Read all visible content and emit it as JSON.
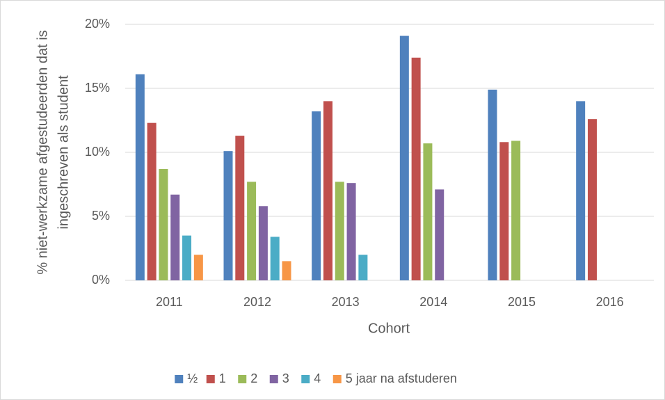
{
  "chart_data": {
    "type": "bar",
    "y_label": [
      "% niet-werkzame afgestudeerden dat is",
      "ingeschreven als student"
    ],
    "x_label": "Cohort",
    "categories": [
      "2011",
      "2012",
      "2013",
      "2014",
      "2015",
      "2016"
    ],
    "series": [
      {
        "name": "½",
        "color": "#4f81bd",
        "values": [
          16.1,
          10.1,
          13.2,
          19.1,
          14.9,
          14.0
        ]
      },
      {
        "name": "1",
        "color": "#c0504d",
        "values": [
          12.3,
          11.3,
          14.0,
          17.4,
          10.8,
          12.6
        ]
      },
      {
        "name": "2",
        "color": "#9bbb59",
        "values": [
          8.7,
          7.7,
          7.7,
          10.7,
          10.9,
          null
        ]
      },
      {
        "name": "3",
        "color": "#8064a2",
        "values": [
          6.7,
          5.8,
          7.6,
          7.1,
          null,
          null
        ]
      },
      {
        "name": "4",
        "color": "#4bacc6",
        "values": [
          3.5,
          3.4,
          2.0,
          null,
          null,
          null
        ]
      },
      {
        "name": "5 jaar na afstuderen",
        "color": "#f79646",
        "values": [
          2.0,
          1.5,
          null,
          null,
          null,
          null
        ]
      }
    ],
    "ylim": [
      0,
      20
    ],
    "yticks": [
      {
        "value": 0,
        "label": "0%"
      },
      {
        "value": 5,
        "label": "5%"
      },
      {
        "value": 10,
        "label": "10%"
      },
      {
        "value": 15,
        "label": "15%"
      },
      {
        "value": 20,
        "label": "20%"
      }
    ],
    "grid": true,
    "legend": "bottom"
  }
}
